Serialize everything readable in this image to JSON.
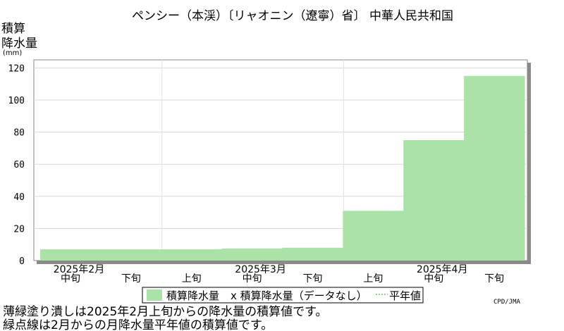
{
  "chart_data": {
    "type": "area",
    "title": "ペンシー（本渓）〔リャオニン（遼寧）省〕 中華人民共和国",
    "ylabel_lines": [
      "積算",
      "降水量",
      "(mm)"
    ],
    "y_ticks": [
      "0",
      "20",
      "40",
      "60",
      "80",
      "100",
      "120"
    ],
    "ylim": [
      0,
      125
    ],
    "periods": [
      "中旬",
      "下旬",
      "上旬",
      "中旬",
      "下旬",
      "上旬",
      "中旬",
      "下旬"
    ],
    "months": [
      "2025年2月",
      "2025年3月",
      "2025年4月"
    ],
    "series": [
      {
        "name": "積算降水量",
        "color": "#aae2a8",
        "values": [
          7,
          7,
          7,
          7.5,
          8,
          31,
          75,
          115
        ]
      }
    ],
    "legend": [
      "積算降水量",
      "x 積算降水量（データなし）",
      "平年値"
    ],
    "source": "CPD/JMA",
    "notes": [
      "薄緑塗り潰しは2025年2月上旬からの降水量の積算値です。",
      "緑点線は2月からの月降水量平年値の積算値です。"
    ],
    "grid": true
  }
}
